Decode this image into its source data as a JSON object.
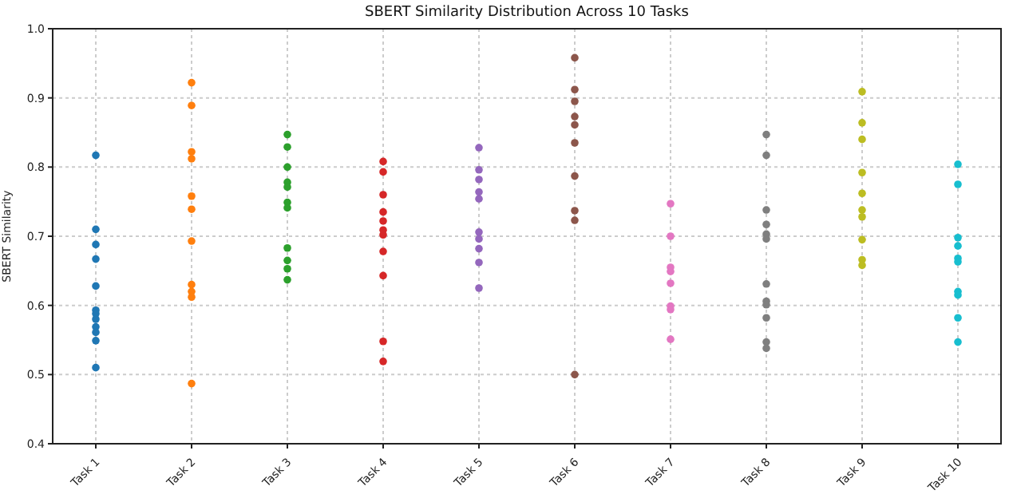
{
  "chart_data": {
    "type": "scatter",
    "title": "SBERT Similarity Distribution Across 10 Tasks",
    "ylabel": "SBERT Similarity",
    "categories": [
      "Task 1",
      "Task 2",
      "Task 3",
      "Task 4",
      "Task 5",
      "Task 6",
      "Task 7",
      "Task 8",
      "Task 9",
      "Task 10"
    ],
    "ylim": [
      0.4,
      1.0
    ],
    "yticks": [
      {
        "value": 0.4,
        "label": "0.4"
      },
      {
        "value": 0.5,
        "label": "0.5"
      },
      {
        "value": 0.6,
        "label": "0.6"
      },
      {
        "value": 0.7,
        "label": "0.7"
      },
      {
        "value": 0.8,
        "label": "0.8"
      },
      {
        "value": 0.9,
        "label": "0.9"
      },
      {
        "value": 1.0,
        "label": "1.0"
      }
    ],
    "grid": true,
    "marker": "circle",
    "series": [
      {
        "color": "#1f77b4",
        "x": [
          "Task 1",
          "Task 1",
          "Task 1",
          "Task 1",
          "Task 1",
          "Task 1",
          "Task 1",
          "Task 1",
          "Task 1",
          "Task 1",
          "Task 1",
          "Task 1"
        ],
        "values": [
          0.817,
          0.71,
          0.688,
          0.667,
          0.628,
          0.593,
          0.588,
          0.58,
          0.569,
          0.561,
          0.549,
          0.51
        ]
      },
      {
        "color": "#ff7f0e",
        "x": [
          "Task 2",
          "Task 2",
          "Task 2",
          "Task 2",
          "Task 2",
          "Task 2",
          "Task 2",
          "Task 2",
          "Task 2",
          "Task 2",
          "Task 2"
        ],
        "values": [
          0.922,
          0.889,
          0.822,
          0.812,
          0.758,
          0.739,
          0.693,
          0.63,
          0.62,
          0.612,
          0.487
        ]
      },
      {
        "color": "#2ca02c",
        "x": [
          "Task 3",
          "Task 3",
          "Task 3",
          "Task 3",
          "Task 3",
          "Task 3",
          "Task 3",
          "Task 3",
          "Task 3",
          "Task 3",
          "Task 3"
        ],
        "values": [
          0.847,
          0.829,
          0.8,
          0.778,
          0.771,
          0.749,
          0.741,
          0.683,
          0.665,
          0.653,
          0.637
        ]
      },
      {
        "color": "#d62728",
        "x": [
          "Task 4",
          "Task 4",
          "Task 4",
          "Task 4",
          "Task 4",
          "Task 4",
          "Task 4",
          "Task 4",
          "Task 4",
          "Task 4",
          "Task 4"
        ],
        "values": [
          0.808,
          0.793,
          0.76,
          0.735,
          0.722,
          0.709,
          0.702,
          0.678,
          0.643,
          0.548,
          0.519
        ]
      },
      {
        "color": "#9467bd",
        "x": [
          "Task 5",
          "Task 5",
          "Task 5",
          "Task 5",
          "Task 5",
          "Task 5",
          "Task 5",
          "Task 5",
          "Task 5",
          "Task 5"
        ],
        "values": [
          0.828,
          0.796,
          0.782,
          0.764,
          0.754,
          0.706,
          0.696,
          0.682,
          0.662,
          0.625
        ]
      },
      {
        "color": "#8c564b",
        "x": [
          "Task 6",
          "Task 6",
          "Task 6",
          "Task 6",
          "Task 6",
          "Task 6",
          "Task 6",
          "Task 6",
          "Task 6",
          "Task 6"
        ],
        "values": [
          0.958,
          0.912,
          0.895,
          0.873,
          0.861,
          0.835,
          0.787,
          0.737,
          0.723,
          0.5
        ]
      },
      {
        "color": "#e377c2",
        "x": [
          "Task 7",
          "Task 7",
          "Task 7",
          "Task 7",
          "Task 7",
          "Task 7",
          "Task 7",
          "Task 7",
          "Task 7"
        ],
        "values": [
          0.747,
          0.7,
          0.655,
          0.649,
          0.632,
          0.599,
          0.594,
          0.551,
          null
        ]
      },
      {
        "color": "#7f7f7f",
        "x": [
          "Task 8",
          "Task 8",
          "Task 8",
          "Task 8",
          "Task 8",
          "Task 8",
          "Task 8",
          "Task 8",
          "Task 8",
          "Task 8",
          "Task 8",
          "Task 8"
        ],
        "values": [
          0.847,
          0.817,
          0.738,
          0.717,
          0.703,
          0.696,
          0.631,
          0.606,
          0.601,
          0.582,
          0.547,
          0.538
        ]
      },
      {
        "color": "#bcbd22",
        "x": [
          "Task 9",
          "Task 9",
          "Task 9",
          "Task 9",
          "Task 9",
          "Task 9",
          "Task 9",
          "Task 9",
          "Task 9",
          "Task 9"
        ],
        "values": [
          0.909,
          0.864,
          0.84,
          0.792,
          0.762,
          0.738,
          0.728,
          0.695,
          0.666,
          0.658
        ]
      },
      {
        "color": "#17becf",
        "x": [
          "Task 10",
          "Task 10",
          "Task 10",
          "Task 10",
          "Task 10",
          "Task 10",
          "Task 10",
          "Task 10",
          "Task 10",
          "Task 10"
        ],
        "values": [
          0.804,
          0.775,
          0.698,
          0.686,
          0.668,
          0.663,
          0.62,
          0.615,
          0.582,
          0.547
        ]
      }
    ]
  }
}
